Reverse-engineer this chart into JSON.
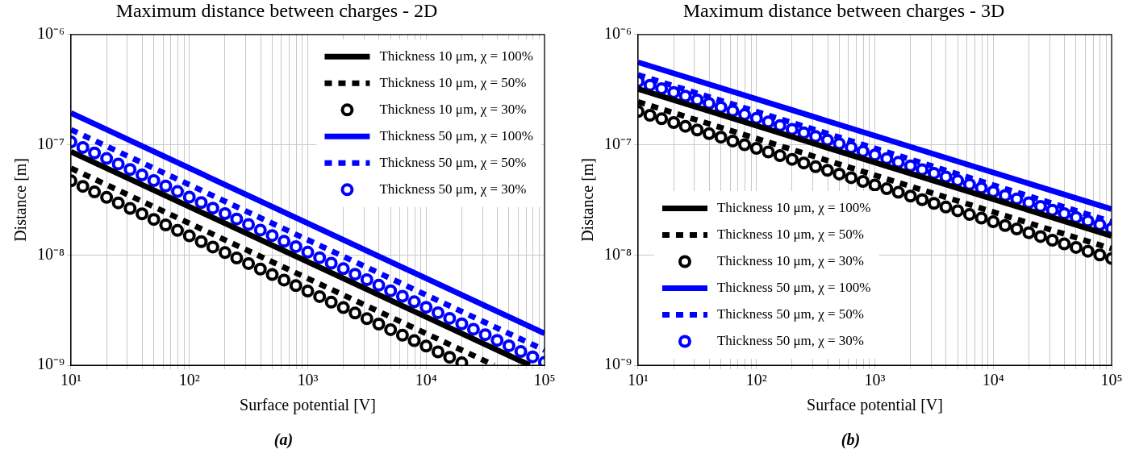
{
  "chart_data": [
    {
      "type": "line",
      "title": "Maximum distance between charges - 2D",
      "xlabel": "Surface potential [V]",
      "ylabel": "Distance [m]",
      "log": "xy",
      "grid": true,
      "legend": "top right",
      "annotations": [
        "(a)"
      ],
      "xlim": [
        10,
        100000
      ],
      "ylim": [
        1e-09,
        1e-06
      ],
      "xticks": [
        {
          "value": 10,
          "label": "10¹"
        },
        {
          "value": 20,
          "label": null
        },
        {
          "value": 30,
          "label": null
        },
        {
          "value": 40,
          "label": null
        },
        {
          "value": 50,
          "label": null
        },
        {
          "value": 60,
          "label": null
        },
        {
          "value": 70,
          "label": null
        },
        {
          "value": 80,
          "label": null
        },
        {
          "value": 90,
          "label": null
        },
        {
          "value": 100,
          "label": "10²"
        },
        {
          "value": 200,
          "label": null
        },
        {
          "value": 300,
          "label": null
        },
        {
          "value": 400,
          "label": null
        },
        {
          "value": 500,
          "label": null
        },
        {
          "value": 600,
          "label": null
        },
        {
          "value": 700,
          "label": null
        },
        {
          "value": 800,
          "label": null
        },
        {
          "value": 900,
          "label": null
        },
        {
          "value": 1000,
          "label": "10³"
        },
        {
          "value": 2000,
          "label": null
        },
        {
          "value": 3000,
          "label": null
        },
        {
          "value": 4000,
          "label": null
        },
        {
          "value": 5000,
          "label": null
        },
        {
          "value": 6000,
          "label": null
        },
        {
          "value": 7000,
          "label": null
        },
        {
          "value": 8000,
          "label": null
        },
        {
          "value": 9000,
          "label": null
        },
        {
          "value": 10000,
          "label": "10⁴"
        },
        {
          "value": 20000,
          "label": null
        },
        {
          "value": 30000,
          "label": null
        },
        {
          "value": 40000,
          "label": null
        },
        {
          "value": 50000,
          "label": null
        },
        {
          "value": 60000,
          "label": null
        },
        {
          "value": 70000,
          "label": null
        },
        {
          "value": 80000,
          "label": null
        },
        {
          "value": 90000,
          "label": null
        },
        {
          "value": 100000,
          "label": "10⁵"
        }
      ],
      "yticks": [
        {
          "value": 1e-09,
          "label": "10⁻⁹"
        },
        {
          "value": 1e-08,
          "label": "10⁻⁸"
        },
        {
          "value": 1e-07,
          "label": "10⁻⁷"
        },
        {
          "value": 1e-06,
          "label": "10⁻⁶"
        }
      ],
      "series": [
        {
          "name": "Thickness 10 μm, χ = 100%",
          "color": "#000000",
          "type": "line",
          "line_style": "solid",
          "marker": "none",
          "x": [
            10,
            75000
          ],
          "values": [
            8.66e-08,
            1e-09
          ]
        },
        {
          "name": "Thickness 10 μm, χ = 50%",
          "color": "#000000",
          "type": "line",
          "line_style": "dashed",
          "marker": "none",
          "x": [
            10,
            37500
          ],
          "values": [
            6.12e-08,
            1e-09
          ]
        },
        {
          "name": "Thickness 10 μm, χ = 30%",
          "color": "#000000",
          "type": "scatter",
          "marker": "circle",
          "x": [
            10,
            12.6,
            15.8,
            20,
            25.1,
            31.6,
            39.8,
            50.1,
            63.1,
            79.4,
            100,
            126,
            158,
            200,
            251,
            316,
            398,
            501,
            631,
            794,
            1000,
            1260,
            1580,
            2000,
            2510,
            3160,
            3980,
            5010,
            6310,
            7940,
            10000,
            12600,
            15800,
            20000
          ],
          "values": [
            4.7e-08,
            4.19e-08,
            3.73e-08,
            3.33e-08,
            2.97e-08,
            2.64e-08,
            2.36e-08,
            2.1e-08,
            1.87e-08,
            1.67e-08,
            1.49e-08,
            1.32e-08,
            1.18e-08,
            1.05e-08,
            9.38e-09,
            8.36e-09,
            7.45e-09,
            6.64e-09,
            5.92e-09,
            5.27e-09,
            4.7e-09,
            4.19e-09,
            3.73e-09,
            3.33e-09,
            2.97e-09,
            2.64e-09,
            2.36e-09,
            2.1e-09,
            1.87e-09,
            1.67e-09,
            1.49e-09,
            1.32e-09,
            1.18e-09,
            1.05e-09
          ]
        },
        {
          "name": "Thickness 50 μm, χ = 100%",
          "color": "#0000ff",
          "type": "line",
          "line_style": "solid",
          "marker": "none",
          "x": [
            10,
            100000
          ],
          "values": [
            1.94e-07,
            1.94e-09
          ]
        },
        {
          "name": "Thickness 50 μm, χ = 50%",
          "color": "#0000ff",
          "type": "line",
          "line_style": "dashed",
          "marker": "none",
          "x": [
            10,
            100000
          ],
          "values": [
            1.37e-07,
            1.37e-09
          ]
        },
        {
          "name": "Thickness 50 μm, χ = 30%",
          "color": "#0000ff",
          "type": "scatter",
          "marker": "circle",
          "x": [
            10,
            12.6,
            15.8,
            20,
            25.1,
            31.6,
            39.8,
            50.1,
            63.1,
            79.4,
            100,
            126,
            158,
            200,
            251,
            316,
            398,
            501,
            631,
            794,
            1000,
            1260,
            1580,
            2000,
            2510,
            3160,
            3980,
            5010,
            6310,
            7940,
            10000,
            12600,
            15800,
            20000,
            25100,
            31600,
            39800,
            50100,
            63100,
            79400,
            100000
          ],
          "values": [
            1.06e-07,
            9.45e-08,
            8.42e-08,
            7.5e-08,
            6.69e-08,
            5.96e-08,
            5.31e-08,
            4.73e-08,
            4.22e-08,
            3.76e-08,
            3.35e-08,
            2.99e-08,
            2.66e-08,
            2.37e-08,
            2.12e-08,
            1.89e-08,
            1.68e-08,
            1.5e-08,
            1.33e-08,
            1.19e-08,
            1.06e-08,
            9.45e-09,
            8.42e-09,
            7.5e-09,
            6.69e-09,
            5.96e-09,
            5.31e-09,
            4.73e-09,
            4.22e-09,
            3.76e-09,
            3.35e-09,
            2.99e-09,
            2.66e-09,
            2.37e-09,
            2.12e-09,
            1.89e-09,
            1.68e-09,
            1.5e-09,
            1.33e-09,
            1.19e-09,
            1.06e-09
          ]
        }
      ]
    },
    {
      "type": "line",
      "title": "Maximum distance between charges - 3D",
      "xlabel": "Surface potential [V]",
      "ylabel": "Distance [m]",
      "log": "xy",
      "grid": true,
      "legend": "bottom left",
      "annotations": [
        "(b)"
      ],
      "xlim": [
        10,
        100000
      ],
      "ylim": [
        1e-09,
        1e-06
      ],
      "xticks": [
        {
          "value": 10,
          "label": "10¹"
        },
        {
          "value": 20,
          "label": null
        },
        {
          "value": 30,
          "label": null
        },
        {
          "value": 40,
          "label": null
        },
        {
          "value": 50,
          "label": null
        },
        {
          "value": 60,
          "label": null
        },
        {
          "value": 70,
          "label": null
        },
        {
          "value": 80,
          "label": null
        },
        {
          "value": 90,
          "label": null
        },
        {
          "value": 100,
          "label": "10²"
        },
        {
          "value": 200,
          "label": null
        },
        {
          "value": 300,
          "label": null
        },
        {
          "value": 400,
          "label": null
        },
        {
          "value": 500,
          "label": null
        },
        {
          "value": 600,
          "label": null
        },
        {
          "value": 700,
          "label": null
        },
        {
          "value": 800,
          "label": null
        },
        {
          "value": 900,
          "label": null
        },
        {
          "value": 1000,
          "label": "10³"
        },
        {
          "value": 2000,
          "label": null
        },
        {
          "value": 3000,
          "label": null
        },
        {
          "value": 4000,
          "label": null
        },
        {
          "value": 5000,
          "label": null
        },
        {
          "value": 6000,
          "label": null
        },
        {
          "value": 7000,
          "label": null
        },
        {
          "value": 8000,
          "label": null
        },
        {
          "value": 9000,
          "label": null
        },
        {
          "value": 10000,
          "label": "10⁴"
        },
        {
          "value": 20000,
          "label": null
        },
        {
          "value": 30000,
          "label": null
        },
        {
          "value": 40000,
          "label": null
        },
        {
          "value": 50000,
          "label": null
        },
        {
          "value": 60000,
          "label": null
        },
        {
          "value": 70000,
          "label": null
        },
        {
          "value": 80000,
          "label": null
        },
        {
          "value": 90000,
          "label": null
        },
        {
          "value": 100000,
          "label": "10⁵"
        }
      ],
      "yticks": [
        {
          "value": 1e-09,
          "label": "10⁻⁹"
        },
        {
          "value": 1e-08,
          "label": "10⁻⁸"
        },
        {
          "value": 1e-07,
          "label": "10⁻⁷"
        },
        {
          "value": 1e-06,
          "label": "10⁻⁶"
        }
      ],
      "series": [
        {
          "name": "Thickness 10 μm, χ = 100%",
          "color": "#000000",
          "type": "line",
          "line_style": "solid",
          "marker": "none",
          "x": [
            10,
            100000
          ],
          "values": [
            3.2e-07,
            1.49e-08
          ]
        },
        {
          "name": "Thickness 10 μm, χ = 50%",
          "color": "#000000",
          "type": "line",
          "line_style": "dashed",
          "marker": "none",
          "x": [
            10,
            100000
          ],
          "values": [
            2.45e-07,
            1.14e-08
          ]
        },
        {
          "name": "Thickness 10 μm, χ = 30%",
          "color": "#000000",
          "type": "scatter",
          "marker": "circle",
          "x": [
            10,
            12.6,
            15.8,
            20,
            25.1,
            31.6,
            39.8,
            50.1,
            63.1,
            79.4,
            100,
            126,
            158,
            200,
            251,
            316,
            398,
            501,
            631,
            794,
            1000,
            1260,
            1580,
            2000,
            2510,
            3160,
            3980,
            5010,
            6310,
            7940,
            10000,
            12600,
            15800,
            20000,
            25100,
            31600,
            39800,
            50100,
            63100,
            79400,
            100000
          ],
          "values": [
            2e-07,
            1.85e-07,
            1.72e-07,
            1.59e-07,
            1.47e-07,
            1.36e-07,
            1.26e-07,
            1.17e-07,
            1.08e-07,
            1e-07,
            9.28e-08,
            8.6e-08,
            7.96e-08,
            7.37e-08,
            6.83e-08,
            6.32e-08,
            5.86e-08,
            5.42e-08,
            5.02e-08,
            4.65e-08,
            4.31e-08,
            3.99e-08,
            3.7e-08,
            3.42e-08,
            3.17e-08,
            2.94e-08,
            2.72e-08,
            2.52e-08,
            2.33e-08,
            2.16e-08,
            2e-08,
            1.85e-08,
            1.72e-08,
            1.59e-08,
            1.47e-08,
            1.36e-08,
            1.26e-08,
            1.17e-08,
            1.08e-08,
            1e-08,
            9.28e-09
          ]
        },
        {
          "name": "Thickness 50 μm, χ = 100%",
          "color": "#0000ff",
          "type": "line",
          "line_style": "solid",
          "marker": "none",
          "x": [
            10,
            100000
          ],
          "values": [
            5.6e-07,
            2.6e-08
          ]
        },
        {
          "name": "Thickness 50 μm, χ = 50%",
          "color": "#0000ff",
          "type": "line",
          "line_style": "dashed",
          "marker": "none",
          "x": [
            10,
            100000
          ],
          "values": [
            4.3e-07,
            2e-08
          ]
        },
        {
          "name": "Thickness 50 μm, χ = 30%",
          "color": "#0000ff",
          "type": "scatter",
          "marker": "circle",
          "x": [
            10,
            12.6,
            15.8,
            20,
            25.1,
            31.6,
            39.8,
            50.1,
            63.1,
            79.4,
            100,
            126,
            158,
            200,
            251,
            316,
            398,
            501,
            631,
            794,
            1000,
            1260,
            1580,
            2000,
            2510,
            3160,
            3980,
            5010,
            6310,
            7940,
            10000,
            12600,
            15800,
            20000,
            25100,
            31600,
            39800,
            50100,
            63100,
            79400,
            100000
          ],
          "values": [
            3.75e-07,
            3.47e-07,
            3.22e-07,
            2.98e-07,
            2.76e-07,
            2.55e-07,
            2.37e-07,
            2.19e-07,
            2.03e-07,
            1.88e-07,
            1.74e-07,
            1.61e-07,
            1.49e-07,
            1.38e-07,
            1.28e-07,
            1.19e-07,
            1.1e-07,
            1.02e-07,
            9.42e-08,
            8.72e-08,
            8.08e-08,
            7.48e-08,
            6.93e-08,
            6.42e-08,
            5.94e-08,
            5.51e-08,
            5.1e-08,
            4.72e-08,
            4.37e-08,
            4.05e-08,
            3.75e-08,
            3.47e-08,
            3.22e-08,
            2.98e-08,
            2.76e-08,
            2.55e-08,
            2.37e-08,
            2.19e-08,
            2.03e-08,
            1.88e-08,
            1.74e-08
          ]
        }
      ]
    }
  ]
}
